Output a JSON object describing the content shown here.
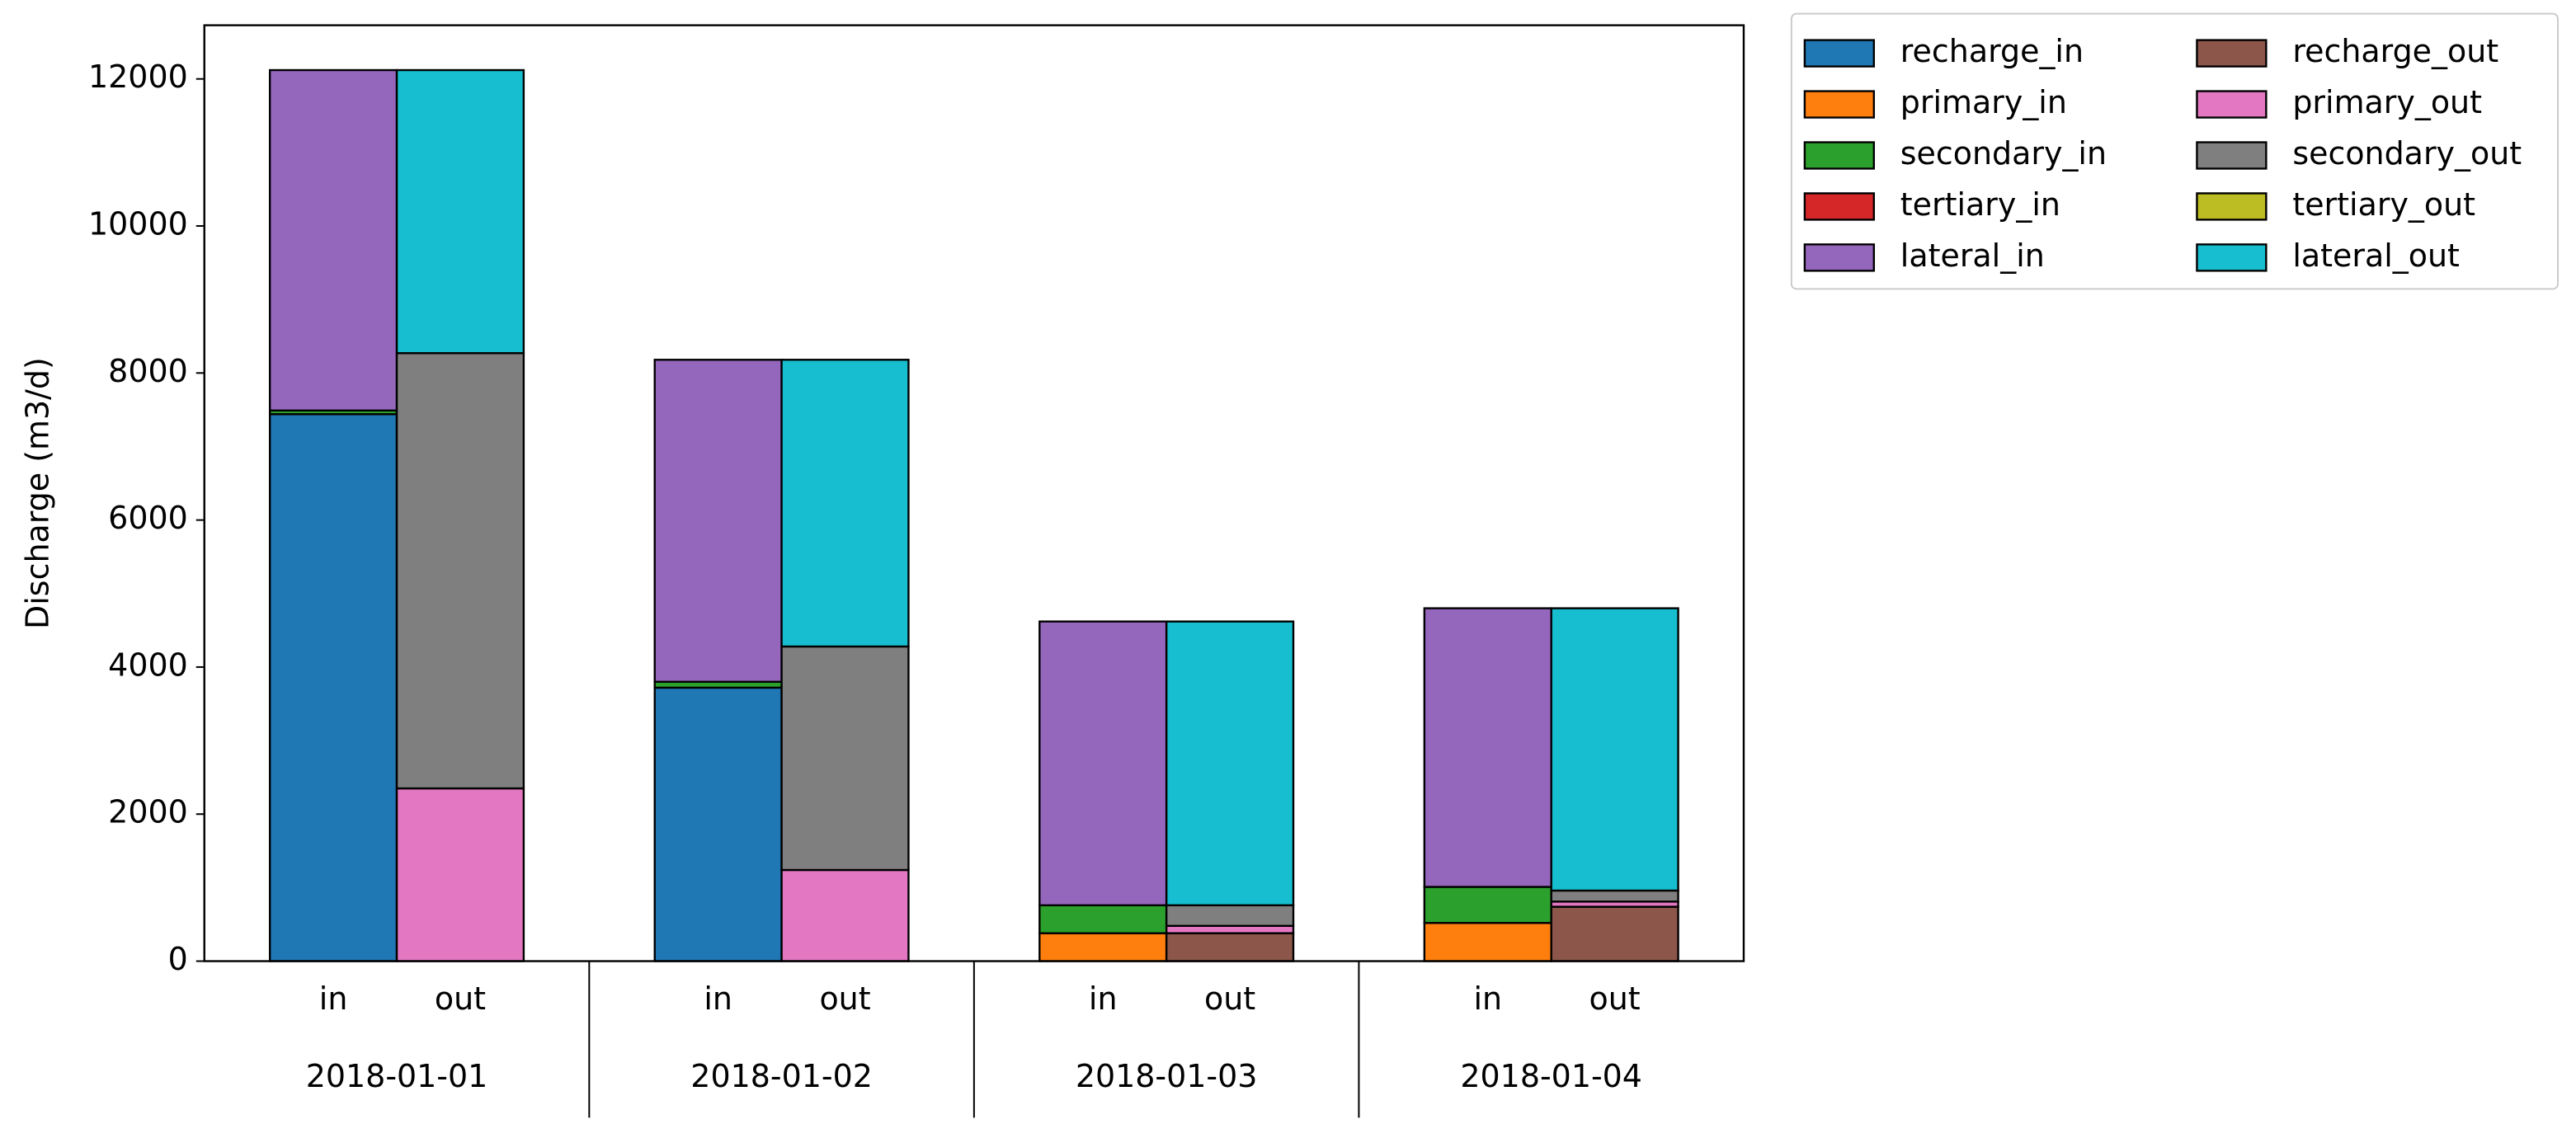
{
  "chart_data": {
    "type": "grouped_stacked_bar",
    "ylabel": "Discharge (m3/d)",
    "categories": [
      "2018-01-01",
      "2018-01-02",
      "2018-01-03",
      "2018-01-04"
    ],
    "ylim": [
      0,
      12730
    ],
    "yticks": [
      0,
      2000,
      4000,
      6000,
      8000,
      10000,
      12000
    ],
    "legend": "outside upper right",
    "stacks": [
      {
        "name": "in",
        "series": [
          {
            "name": "recharge_in",
            "color": "#1f77b4",
            "values": [
              7440,
              3720,
              0,
              0
            ]
          },
          {
            "name": "primary_in",
            "color": "#ff7f0e",
            "values": [
              0,
              0,
              380,
              520
            ]
          },
          {
            "name": "secondary_in",
            "color": "#2ca02c",
            "values": [
              50,
              80,
              380,
              490
            ]
          },
          {
            "name": "tertiary_in",
            "color": "#d62728",
            "values": [
              0,
              0,
              0,
              0
            ]
          },
          {
            "name": "lateral_in",
            "color": "#9467bd",
            "values": [
              4630,
              4380,
              3860,
              3790
            ]
          }
        ]
      },
      {
        "name": "out",
        "series": [
          {
            "name": "recharge_out",
            "color": "#8c564b",
            "values": [
              0,
              0,
              380,
              740
            ]
          },
          {
            "name": "primary_out",
            "color": "#e377c2",
            "values": [
              2350,
              1240,
              100,
              70
            ]
          },
          {
            "name": "secondary_out",
            "color": "#7f7f7f",
            "values": [
              5920,
              3040,
              280,
              150
            ]
          },
          {
            "name": "tertiary_out",
            "color": "#bcbd22",
            "values": [
              0,
              0,
              0,
              0
            ]
          },
          {
            "name": "lateral_out",
            "color": "#17becf",
            "values": [
              3850,
              3900,
              3860,
              3840
            ]
          }
        ]
      }
    ]
  }
}
